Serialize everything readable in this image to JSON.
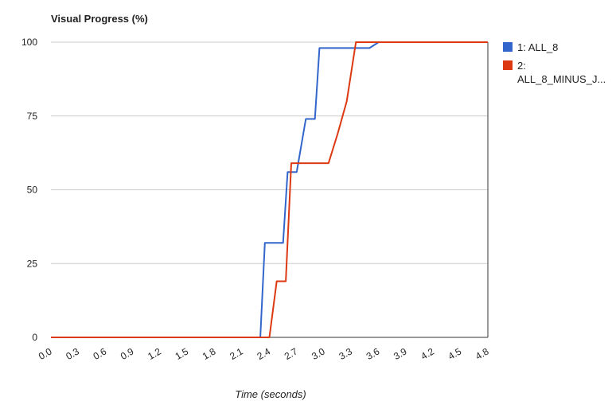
{
  "chart_data": {
    "type": "line",
    "title": "Visual Progress (%)",
    "xlabel": "Time (seconds)",
    "ylabel": "",
    "xlim": [
      0,
      4.8
    ],
    "ylim": [
      0,
      100
    ],
    "x_ticks": [
      "0.0",
      "0.3",
      "0.6",
      "0.9",
      "1.2",
      "1.5",
      "1.8",
      "2.1",
      "2.4",
      "2.7",
      "3.0",
      "3.3",
      "3.6",
      "3.9",
      "4.2",
      "4.5",
      "4.8"
    ],
    "y_ticks": [
      "0",
      "25",
      "50",
      "75",
      "100"
    ],
    "grid": true,
    "legend_position": "right",
    "series": [
      {
        "name": "1: ALL_8",
        "color": "#3366cc",
        "points": [
          [
            0,
            0
          ],
          [
            2.3,
            0
          ],
          [
            2.35,
            32
          ],
          [
            2.55,
            32
          ],
          [
            2.6,
            56
          ],
          [
            2.7,
            56
          ],
          [
            2.8,
            74
          ],
          [
            2.9,
            74
          ],
          [
            2.95,
            98
          ],
          [
            3.5,
            98
          ],
          [
            3.6,
            100
          ],
          [
            4.8,
            100
          ]
        ]
      },
      {
        "name": "2: ALL_8_MINUS_J...",
        "color": "#dc3912",
        "points": [
          [
            0,
            0
          ],
          [
            2.4,
            0
          ],
          [
            2.48,
            19
          ],
          [
            2.58,
            19
          ],
          [
            2.64,
            59
          ],
          [
            3.05,
            59
          ],
          [
            3.15,
            69
          ],
          [
            3.25,
            80
          ],
          [
            3.35,
            100
          ],
          [
            4.8,
            100
          ]
        ]
      }
    ]
  }
}
